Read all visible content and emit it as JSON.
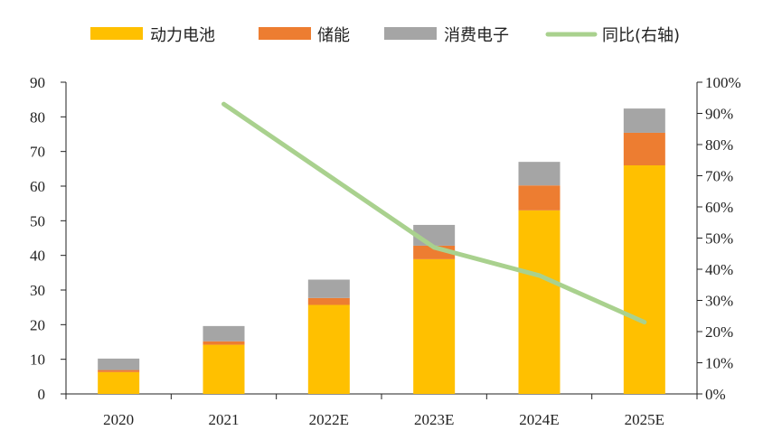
{
  "chart_data": {
    "type": "bar",
    "stacked": true,
    "categories": [
      "2020",
      "2021",
      "2022E",
      "2023E",
      "2024E",
      "2025E"
    ],
    "series": [
      {
        "name": "动力电池",
        "kind": "bar",
        "axis": "left",
        "color": "#FFC000",
        "values": [
          6.3,
          14.2,
          25.7,
          38.9,
          53.0,
          66.0
        ]
      },
      {
        "name": "储能",
        "kind": "bar",
        "axis": "left",
        "color": "#ED7D31",
        "values": [
          0.6,
          1.0,
          2.0,
          3.9,
          7.2,
          9.4
        ]
      },
      {
        "name": "消费电子",
        "kind": "bar",
        "axis": "left",
        "color": "#A5A5A5",
        "values": [
          3.3,
          4.4,
          5.3,
          6.0,
          6.8,
          7.0
        ]
      },
      {
        "name": "同比(右轴)",
        "kind": "line",
        "axis": "right",
        "color": "#A9D18E",
        "values": [
          null,
          0.93,
          0.7,
          0.47,
          0.38,
          0.23
        ]
      }
    ],
    "ylim_left": [
      0,
      90
    ],
    "yticks_left": [
      "0",
      "10",
      "20",
      "30",
      "40",
      "50",
      "60",
      "70",
      "80",
      "90"
    ],
    "ylim_right": [
      0,
      1
    ],
    "yticks_right": [
      "0%",
      "10%",
      "20%",
      "30%",
      "40%",
      "50%",
      "60%",
      "70%",
      "80%",
      "90%",
      "100%"
    ],
    "legend_position": "top",
    "grid": false
  }
}
